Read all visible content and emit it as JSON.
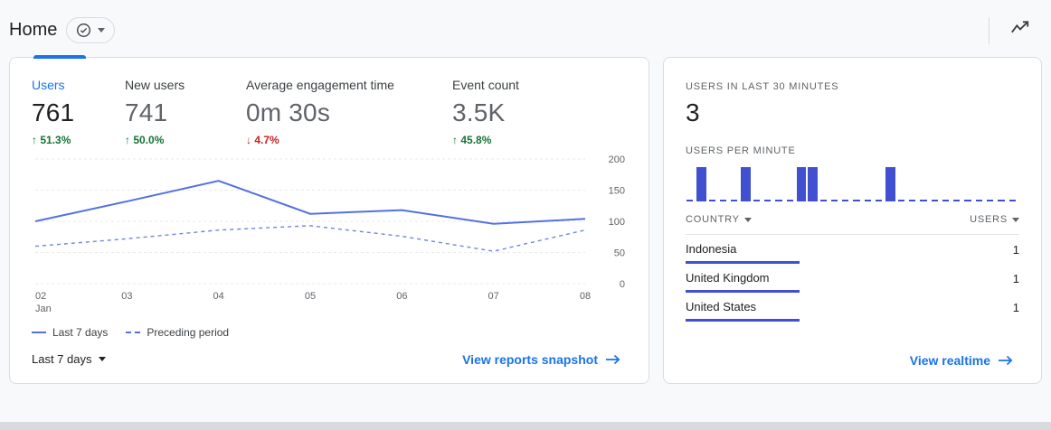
{
  "header": {
    "title": "Home",
    "status_badge_icon": "check-circle",
    "insights_icon": "trend-line"
  },
  "metrics": [
    {
      "label": "Users",
      "value": "761",
      "arrow": "↑",
      "delta": "51.3%"
    },
    {
      "label": "New users",
      "value": "741",
      "arrow": "↑",
      "delta": "50.0%"
    },
    {
      "label": "Average engagement time",
      "value": "0m 30s",
      "arrow": "↓",
      "delta": "4.7%"
    },
    {
      "label": "Event count",
      "value": "3.5K",
      "arrow": "↑",
      "delta": "45.8%"
    }
  ],
  "chart_data": {
    "type": "line",
    "x": [
      "02 Jan",
      "03",
      "04",
      "05",
      "06",
      "07",
      "08"
    ],
    "series": [
      {
        "name": "Last 7 days",
        "style": "solid",
        "values": [
          100,
          132,
          165,
          112,
          118,
          96,
          104
        ]
      },
      {
        "name": "Preceding period",
        "style": "dashed",
        "values": [
          60,
          72,
          86,
          93,
          76,
          52,
          86
        ]
      }
    ],
    "ylim": [
      0,
      200
    ],
    "yticks": [
      0,
      50,
      100,
      150,
      200
    ],
    "xlabel": "",
    "ylabel": "",
    "grid": true,
    "legend_position": "bottom-left"
  },
  "overview_footer": {
    "range_label": "Last 7 days",
    "link_label": "View reports snapshot"
  },
  "realtime": {
    "last30_label": "USERS IN LAST 30 MINUTES",
    "last30_value": "3",
    "per_minute_label": "USERS PER MINUTE",
    "minutes": [
      0,
      1,
      0,
      0,
      0,
      1,
      0,
      0,
      0,
      0,
      1,
      1,
      0,
      0,
      0,
      0,
      0,
      0,
      1,
      0,
      0,
      0,
      0,
      0,
      0,
      0,
      0,
      0,
      0,
      0
    ],
    "table": {
      "headers": {
        "country": "COUNTRY",
        "users": "USERS"
      },
      "rows": [
        {
          "country": "Indonesia",
          "users": "1"
        },
        {
          "country": "United Kingdom",
          "users": "1"
        },
        {
          "country": "United States",
          "users": "1"
        }
      ]
    },
    "link_label": "View realtime"
  },
  "colors": {
    "accent_blue": "#1a73e8",
    "chart_line": "#5470e2",
    "realtime_bar": "#4150d0",
    "positive_green": "#137333",
    "negative_red": "#c5221f",
    "gridline": "#e8eaed"
  }
}
